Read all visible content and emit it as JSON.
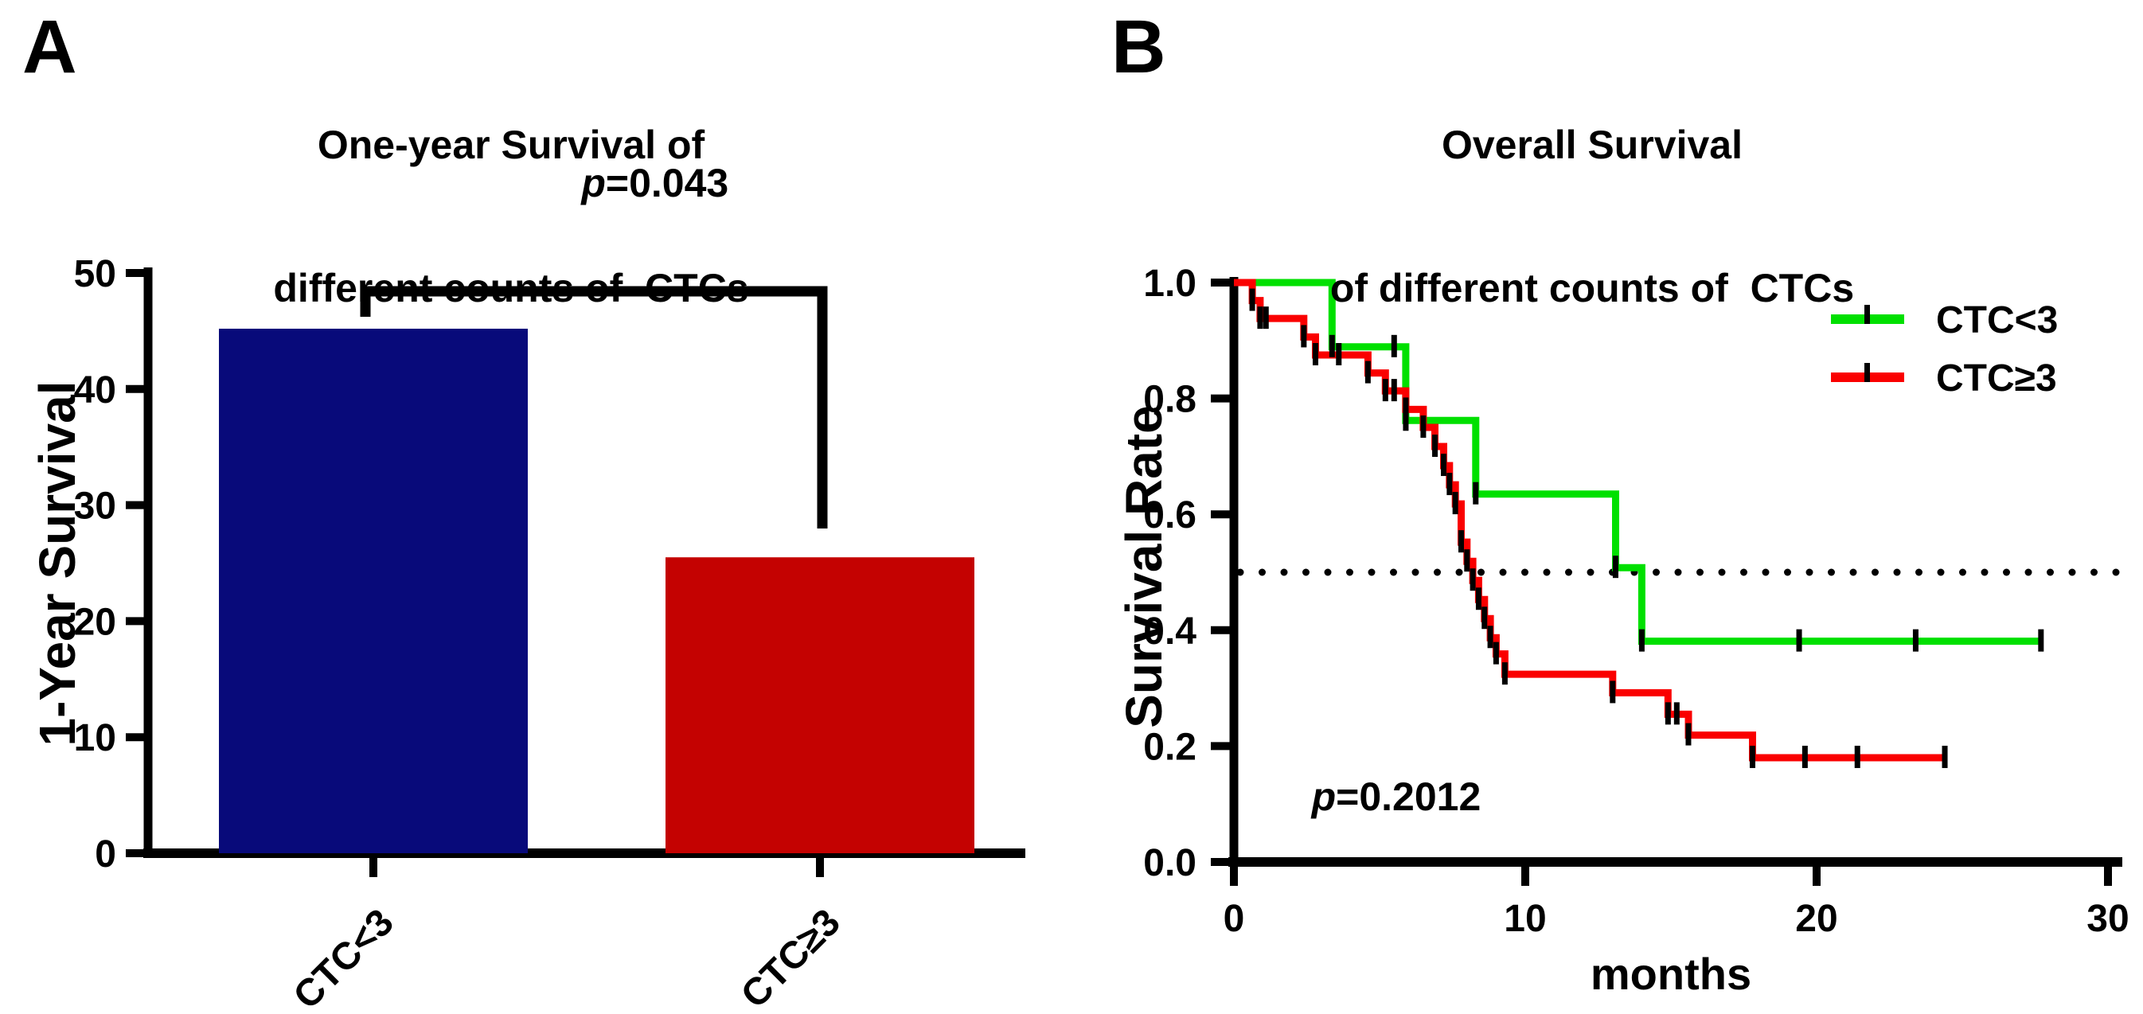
{
  "figure": {
    "background_color": "#ffffff",
    "panel_a": {
      "label": "A",
      "title_lines": [
        "One-year Survival of",
        "different counts of  CTCs"
      ],
      "p_italic": "p",
      "p_text": "=0.043",
      "ylabel": "1-Year Survival"
    },
    "panel_b": {
      "label": "B",
      "title_lines": [
        "Overall Survival",
        "of different counts of  CTCs"
      ],
      "p_italic": "p",
      "p_text": "=0.2012",
      "ylabel": "Survival Rate",
      "xlabel": "months",
      "legend": [
        {
          "label": "CTC<3",
          "color": "#00e000"
        },
        {
          "label": "CTC≥3",
          "color": "#fa0000"
        }
      ]
    },
    "colors": {
      "bar_blue": "#080a7a",
      "bar_red": "#c40201",
      "km_green": "#00e000",
      "km_red": "#fa0000",
      "axis_black": "#000000"
    }
  },
  "chart_data": [
    {
      "type": "bar",
      "panel": "A",
      "title": "One-year Survival of different counts of CTCs",
      "xlabel": "",
      "ylabel": "1-Year Survival",
      "categories": [
        "CTC<3",
        "CTC≥3"
      ],
      "values": [
        45.2,
        25.5
      ],
      "bar_colors": [
        "#080a7a",
        "#c40201"
      ],
      "ylim": [
        0,
        50
      ],
      "yticks": [
        0,
        10,
        20,
        30,
        40,
        50
      ],
      "grid": false,
      "significance": {
        "label": "p=0.043",
        "from": "CTC<3",
        "to": "CTC≥3"
      }
    },
    {
      "type": "line",
      "subtype": "kaplan-meier-step",
      "panel": "B",
      "title": "Overall Survival of different counts of CTCs",
      "xlabel": "months",
      "ylabel": "Survival Rate",
      "xlim": [
        0,
        30
      ],
      "xticks": [
        0,
        10,
        20,
        30
      ],
      "ylim": [
        0,
        1
      ],
      "yticks": [
        0,
        0.2,
        0.4,
        0.6,
        0.8,
        1
      ],
      "ytick_labels": [
        "0.0",
        "0.2",
        "0.4",
        "0.6",
        "0.8",
        "1.0"
      ],
      "grid": false,
      "reference_line_y": 0.5,
      "p_label": "p=0.2012",
      "legend_position": "upper-right",
      "series": [
        {
          "name": "CTC<3",
          "color": "#00e000",
          "steps": [
            [
              0,
              1
            ],
            [
              3.37,
              1
            ],
            [
              3.37,
              0.889
            ],
            [
              5.9,
              0.889
            ],
            [
              5.9,
              0.762
            ],
            [
              8.3,
              0.762
            ],
            [
              8.3,
              0.635
            ],
            [
              13.1,
              0.635
            ],
            [
              13.1,
              0.508
            ],
            [
              14.0,
              0.508
            ],
            [
              14.0,
              0.381
            ],
            [
              27.7,
              0.381
            ]
          ],
          "tick_marks": [
            [
              3.37,
              0.889
            ],
            [
              5.5,
              0.889
            ],
            [
              5.9,
              0.762
            ],
            [
              8.3,
              0.635
            ],
            [
              13.1,
              0.508
            ],
            [
              14.0,
              0.381
            ],
            [
              19.4,
              0.381
            ],
            [
              23.4,
              0.381
            ],
            [
              27.7,
              0.381
            ]
          ]
        },
        {
          "name": "CTC≥3",
          "color": "#fa0000",
          "steps": [
            [
              0,
              1
            ],
            [
              0.63,
              1
            ],
            [
              0.63,
              0.969
            ],
            [
              0.9,
              0.969
            ],
            [
              0.9,
              0.938
            ],
            [
              2.4,
              0.938
            ],
            [
              2.4,
              0.906
            ],
            [
              2.8,
              0.906
            ],
            [
              2.8,
              0.875
            ],
            [
              4.6,
              0.875
            ],
            [
              4.6,
              0.844
            ],
            [
              5.2,
              0.844
            ],
            [
              5.2,
              0.813
            ],
            [
              5.9,
              0.813
            ],
            [
              5.9,
              0.781
            ],
            [
              6.5,
              0.781
            ],
            [
              6.5,
              0.75
            ],
            [
              6.9,
              0.75
            ],
            [
              6.9,
              0.717
            ],
            [
              7.2,
              0.717
            ],
            [
              7.2,
              0.684
            ],
            [
              7.4,
              0.684
            ],
            [
              7.4,
              0.651
            ],
            [
              7.6,
              0.651
            ],
            [
              7.6,
              0.618
            ],
            [
              7.8,
              0.618
            ],
            [
              7.8,
              0.552
            ],
            [
              8.0,
              0.552
            ],
            [
              8.0,
              0.519
            ],
            [
              8.2,
              0.519
            ],
            [
              8.2,
              0.486
            ],
            [
              8.4,
              0.486
            ],
            [
              8.4,
              0.453
            ],
            [
              8.6,
              0.453
            ],
            [
              8.6,
              0.42
            ],
            [
              8.8,
              0.42
            ],
            [
              8.8,
              0.387
            ],
            [
              9.0,
              0.387
            ],
            [
              9.0,
              0.359
            ],
            [
              9.3,
              0.359
            ],
            [
              9.3,
              0.324
            ],
            [
              13.0,
              0.324
            ],
            [
              13.0,
              0.292
            ],
            [
              14.9,
              0.292
            ],
            [
              14.9,
              0.255
            ],
            [
              15.6,
              0.255
            ],
            [
              15.6,
              0.219
            ],
            [
              17.8,
              0.219
            ],
            [
              17.8,
              0.18
            ],
            [
              24.4,
              0.18
            ]
          ],
          "tick_marks": [
            [
              0.63,
              0.969
            ],
            [
              0.9,
              0.938
            ],
            [
              1.1,
              0.938
            ],
            [
              2.4,
              0.906
            ],
            [
              2.8,
              0.875
            ],
            [
              3.6,
              0.875
            ],
            [
              4.6,
              0.844
            ],
            [
              5.2,
              0.813
            ],
            [
              5.5,
              0.813
            ],
            [
              5.9,
              0.781
            ],
            [
              6.5,
              0.75
            ],
            [
              6.9,
              0.717
            ],
            [
              7.2,
              0.684
            ],
            [
              7.4,
              0.651
            ],
            [
              7.6,
              0.618
            ],
            [
              7.8,
              0.552
            ],
            [
              8.0,
              0.519
            ],
            [
              8.2,
              0.486
            ],
            [
              8.4,
              0.453
            ],
            [
              8.6,
              0.42
            ],
            [
              8.8,
              0.387
            ],
            [
              9.0,
              0.359
            ],
            [
              9.3,
              0.324
            ],
            [
              13.0,
              0.292
            ],
            [
              14.9,
              0.255
            ],
            [
              15.2,
              0.255
            ],
            [
              15.6,
              0.219
            ],
            [
              17.8,
              0.18
            ],
            [
              19.6,
              0.18
            ],
            [
              21.4,
              0.18
            ],
            [
              24.4,
              0.18
            ]
          ]
        }
      ]
    }
  ]
}
